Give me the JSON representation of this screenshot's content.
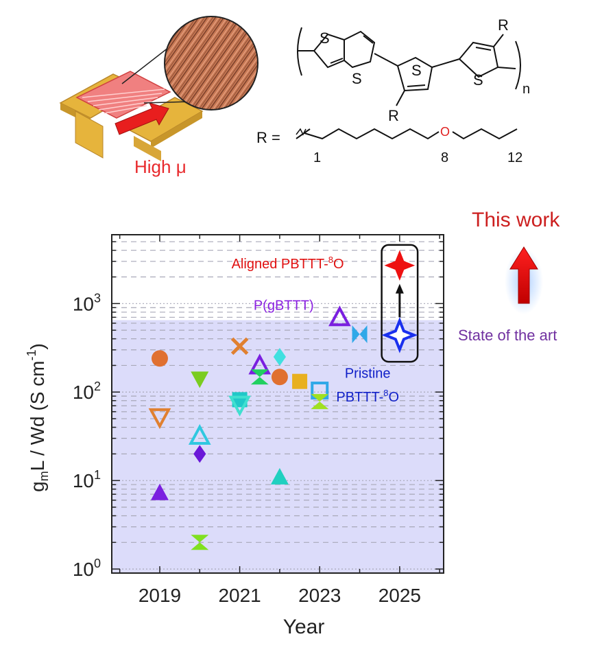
{
  "device": {
    "label": "High μ",
    "label_color": "#e8282b"
  },
  "structure": {
    "atom_s": "S",
    "atom_o": "O",
    "substituent": "R",
    "subscript_n": "n",
    "r_equals": "R =",
    "chain_numbers": [
      "1",
      "8",
      "12"
    ]
  },
  "callouts": {
    "this_work": "This work",
    "this_work_color": "#cc1f1f",
    "state_of_art": "State of the art",
    "state_of_art_color": "#7030a0"
  },
  "chart_data": {
    "type": "scatter",
    "xlabel": "Year",
    "ylabel_parts": [
      "g",
      "m",
      "L / Wd (S cm",
      "-1",
      ")"
    ],
    "x_ticks": [
      "2019",
      "2021",
      "2023",
      "2025"
    ],
    "xlim": [
      2017.8,
      2026.1
    ],
    "ylim": [
      0.9,
      6000
    ],
    "y_scale": "log",
    "y_ticks": [
      {
        "base": "10",
        "exp": "0",
        "value": 1
      },
      {
        "base": "10",
        "exp": "1",
        "value": 10
      },
      {
        "base": "10",
        "exp": "2",
        "value": 100
      },
      {
        "base": "10",
        "exp": "3",
        "value": 1000
      }
    ],
    "shaded_region_max": 650,
    "grid": true,
    "points": [
      {
        "x": 2019,
        "y": 240,
        "marker": "circle",
        "color": "#e07030",
        "filled": true
      },
      {
        "x": 2019,
        "y": 52,
        "marker": "triangle-down",
        "color": "#e08030",
        "filled": false
      },
      {
        "x": 2019,
        "y": 7.3,
        "marker": "triangle-up",
        "color": "#7a1fe0",
        "filled": true
      },
      {
        "x": 2020,
        "y": 140,
        "marker": "triangle-down",
        "color": "#7acc20",
        "filled": true
      },
      {
        "x": 2020,
        "y": 32,
        "marker": "triangle-up",
        "color": "#30c8e0",
        "filled": false
      },
      {
        "x": 2020,
        "y": 20,
        "marker": "diamond",
        "color": "#6a18d8",
        "filled": true
      },
      {
        "x": 2020,
        "y": 2.0,
        "marker": "hourglass",
        "color": "#80e020",
        "filled": true
      },
      {
        "x": 2021,
        "y": 330,
        "marker": "cross",
        "color": "#e08030",
        "filled": true
      },
      {
        "x": 2021,
        "y": 82,
        "marker": "square",
        "color": "#20c8c8",
        "filled": true
      },
      {
        "x": 2021,
        "y": 72,
        "marker": "triangle-down",
        "color": "#40e0d0",
        "filled": false
      },
      {
        "x": 2021.5,
        "y": 200,
        "marker": "triangle-up",
        "color": "#7a1fe0",
        "filled": false
      },
      {
        "x": 2021.5,
        "y": 148,
        "marker": "hourglass",
        "color": "#20d060",
        "filled": true
      },
      {
        "x": 2022,
        "y": 250,
        "marker": "diamond",
        "color": "#40e0e0",
        "filled": true
      },
      {
        "x": 2022,
        "y": 148,
        "marker": "circle",
        "color": "#e07030",
        "filled": true
      },
      {
        "x": 2022,
        "y": 11,
        "marker": "triangle-up",
        "color": "#20d0c0",
        "filled": true
      },
      {
        "x": 2022.5,
        "y": 132,
        "marker": "square",
        "color": "#e8b020",
        "filled": true
      },
      {
        "x": 2023,
        "y": 104,
        "marker": "square",
        "color": "#30a8e8",
        "filled": false
      },
      {
        "x": 2023,
        "y": 78,
        "marker": "hourglass",
        "color": "#a0e020",
        "filled": true
      },
      {
        "x": 2023.5,
        "y": 700,
        "marker": "triangle-up",
        "color": "#7a1fe0",
        "filled": false
      },
      {
        "x": 2024,
        "y": 450,
        "marker": "bowtie",
        "color": "#30a8e8",
        "filled": true
      },
      {
        "x": 2025,
        "y": 2700,
        "marker": "star4",
        "color": "#ee1111",
        "filled": true
      },
      {
        "x": 2025,
        "y": 440,
        "marker": "star4",
        "color": "#1a30ee",
        "filled": false
      }
    ],
    "annotations": [
      {
        "key": "aligned",
        "text": "Aligned PBTTT-",
        "sup": "8",
        "tail": "O",
        "color": "#e01010",
        "x": 2022.2,
        "y": 2500
      },
      {
        "key": "pgbttt",
        "text": "P(gBTTT)",
        "color": "#8a20e0",
        "x": 2022.1,
        "y": 850
      },
      {
        "key": "pristine1",
        "text": "Pristine",
        "color": "#1020c8",
        "x": 2024.2,
        "y": 145
      },
      {
        "key": "pristine2",
        "text": "PBTTT-",
        "sup": "8",
        "tail": "O",
        "color": "#1020c8",
        "x": 2024.2,
        "y": 78
      }
    ]
  }
}
